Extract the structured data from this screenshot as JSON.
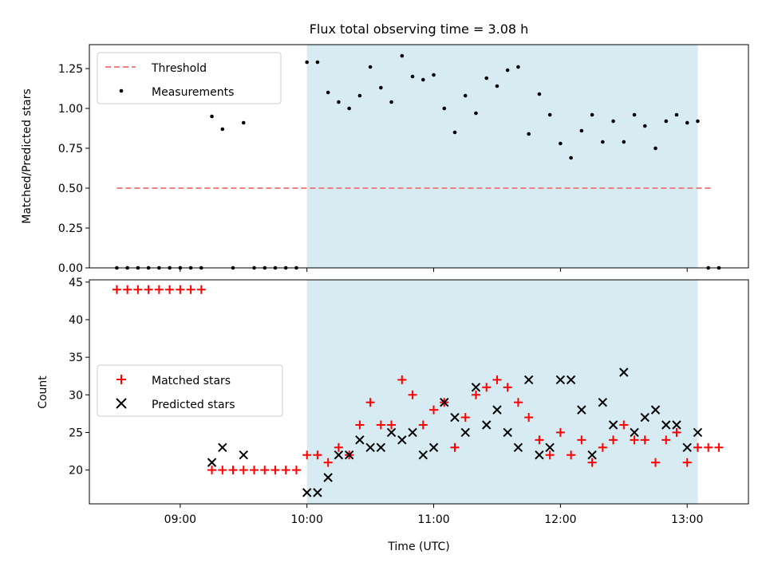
{
  "chart_data": [
    {
      "type": "scatter",
      "title": "Flux total observing time = 3.08 h",
      "ylabel": "Matched/Predicted stars",
      "ylim": [
        0,
        1.4
      ],
      "yticks": [
        "0.00",
        "0.25",
        "0.50",
        "0.75",
        "1.00",
        "1.25"
      ],
      "xlim": [
        "08:17",
        "13:29"
      ],
      "threshold": {
        "name": "Threshold",
        "value": 0.5,
        "x_range": [
          "08:30",
          "13:12"
        ],
        "color": "#f08080"
      },
      "observing_window": {
        "x_range": [
          "10:00",
          "13:05"
        ],
        "color": "#add8e6"
      },
      "legend": "upper-left",
      "series": [
        {
          "name": "Measurements",
          "marker": "dot",
          "color": "#000000",
          "x": [
            "08:30",
            "08:35",
            "08:40",
            "08:45",
            "08:50",
            "08:55",
            "09:00",
            "09:05",
            "09:10",
            "09:15",
            "09:20",
            "09:25",
            "09:30",
            "09:35",
            "09:40",
            "09:45",
            "09:50",
            "09:55",
            "10:00",
            "10:05",
            "10:10",
            "10:15",
            "10:20",
            "10:25",
            "10:30",
            "10:35",
            "10:40",
            "10:45",
            "10:50",
            "10:55",
            "11:00",
            "11:05",
            "11:10",
            "11:15",
            "11:20",
            "11:25",
            "11:30",
            "11:35",
            "11:40",
            "11:45",
            "11:50",
            "11:55",
            "12:00",
            "12:05",
            "12:10",
            "12:15",
            "12:20",
            "12:25",
            "12:30",
            "12:35",
            "12:40",
            "12:45",
            "12:50",
            "12:55",
            "13:00",
            "13:05",
            "13:10",
            "13:15"
          ],
          "y": [
            0,
            0,
            0,
            0,
            0,
            0,
            0,
            0,
            0,
            0.95,
            0.87,
            0,
            0.91,
            0,
            0,
            0,
            0,
            0,
            1.29,
            1.29,
            1.1,
            1.04,
            1.0,
            1.08,
            1.26,
            1.13,
            1.04,
            1.33,
            1.2,
            1.18,
            1.21,
            1.0,
            0.85,
            1.08,
            0.97,
            1.19,
            1.14,
            1.24,
            1.26,
            0.84,
            1.09,
            0.96,
            0.78,
            0.69,
            0.86,
            0.96,
            0.79,
            0.92,
            0.79,
            0.96,
            0.89,
            0.75,
            0.92,
            0.96,
            0.91,
            0.92,
            0,
            0
          ]
        }
      ]
    },
    {
      "type": "scatter",
      "xlabel": "Time (UTC)",
      "ylabel": "Count",
      "ylim": [
        15.5,
        45.3
      ],
      "yticks": [
        "20",
        "25",
        "30",
        "35",
        "40",
        "45"
      ],
      "xticks": [
        "09:00",
        "10:00",
        "11:00",
        "12:00",
        "13:00"
      ],
      "xlim": [
        "08:17",
        "13:29"
      ],
      "observing_window": {
        "x_range": [
          "10:00",
          "13:05"
        ],
        "color": "#add8e6"
      },
      "legend": "center-left",
      "series": [
        {
          "name": "Matched stars",
          "marker": "plus",
          "color": "#ff0000",
          "x": [
            "08:30",
            "08:35",
            "08:40",
            "08:45",
            "08:50",
            "08:55",
            "09:00",
            "09:05",
            "09:10",
            "09:15",
            "09:20",
            "09:25",
            "09:30",
            "09:35",
            "09:40",
            "09:45",
            "09:50",
            "09:55",
            "10:00",
            "10:05",
            "10:10",
            "10:15",
            "10:20",
            "10:25",
            "10:30",
            "10:35",
            "10:40",
            "10:45",
            "10:50",
            "10:55",
            "11:00",
            "11:05",
            "11:10",
            "11:15",
            "11:20",
            "11:25",
            "11:30",
            "11:35",
            "11:40",
            "11:45",
            "11:50",
            "11:55",
            "12:00",
            "12:05",
            "12:10",
            "12:15",
            "12:20",
            "12:25",
            "12:30",
            "12:35",
            "12:40",
            "12:45",
            "12:50",
            "12:55",
            "13:00",
            "13:05",
            "13:10",
            "13:15"
          ],
          "y": [
            44,
            44,
            44,
            44,
            44,
            44,
            44,
            44,
            44,
            20,
            20,
            20,
            20,
            20,
            20,
            20,
            20,
            20,
            22,
            22,
            21,
            23,
            22,
            26,
            29,
            26,
            26,
            32,
            30,
            26,
            28,
            29,
            23,
            27,
            30,
            31,
            32,
            31,
            29,
            27,
            24,
            22,
            25,
            22,
            24,
            21,
            23,
            24,
            26,
            24,
            24,
            21,
            24,
            25,
            21,
            23,
            23,
            23
          ]
        },
        {
          "name": "Predicted stars",
          "marker": "x",
          "color": "#000000",
          "x": [
            "09:15",
            "09:20",
            "09:30",
            "10:00",
            "10:05",
            "10:10",
            "10:15",
            "10:20",
            "10:25",
            "10:30",
            "10:35",
            "10:40",
            "10:45",
            "10:50",
            "10:55",
            "11:00",
            "11:05",
            "11:10",
            "11:15",
            "11:20",
            "11:25",
            "11:30",
            "11:35",
            "11:40",
            "11:45",
            "11:50",
            "11:55",
            "12:00",
            "12:05",
            "12:10",
            "12:15",
            "12:20",
            "12:25",
            "12:30",
            "12:35",
            "12:40",
            "12:45",
            "12:50",
            "12:55",
            "13:00",
            "13:05"
          ],
          "y": [
            21,
            23,
            22,
            17,
            17,
            19,
            22,
            22,
            24,
            23,
            23,
            25,
            24,
            25,
            22,
            23,
            29,
            27,
            25,
            31,
            26,
            28,
            25,
            23,
            32,
            22,
            23,
            32,
            32,
            28,
            22,
            29,
            26,
            33,
            25,
            27,
            28,
            26,
            26,
            23,
            25
          ]
        }
      ]
    }
  ]
}
